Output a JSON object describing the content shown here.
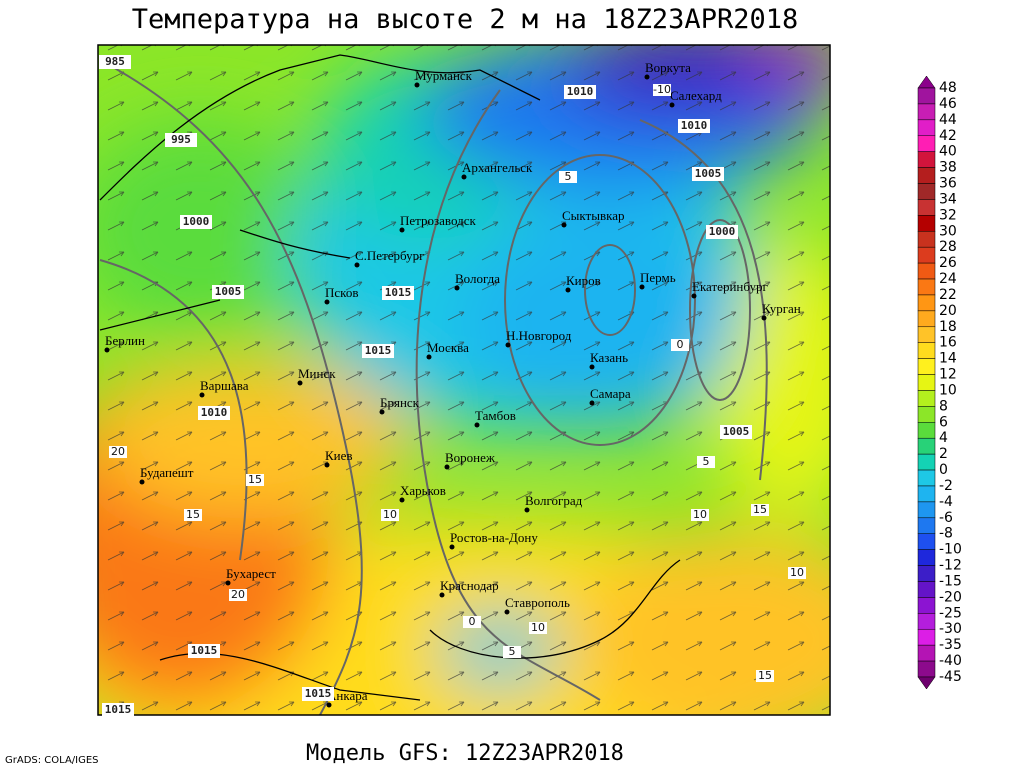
{
  "title": "Температура на высоте 2 м на 18Z23APR2018",
  "footer": "Модель GFS: 12Z23APR2018",
  "credit": "GrADS: COLA/IGES",
  "cities": [
    "Мурманск",
    "Воркута",
    "Салехард",
    "Архангельск",
    "Сыктывкар",
    "Петрозаводск",
    "С.Петербург",
    "Вологда",
    "Киров",
    "Пермь",
    "Екатеринбург",
    "Курган",
    "Псков",
    "Берлин",
    "Н.Новгород",
    "Москва",
    "Казань",
    "Минск",
    "Варшава",
    "Самара",
    "Брянск",
    "Тамбов",
    "Киев",
    "Воронеж",
    "Будапешт",
    "Харьков",
    "Волгоград",
    "Ростов-на-Дону",
    "Бухарест",
    "Краснодар",
    "Ставрополь",
    "Анкара"
  ],
  "isobar_labels": [
    "985",
    "995",
    "1000",
    "1005",
    "1015",
    "1015",
    "1010",
    "1010",
    "1010",
    "1005",
    "1000",
    "1005",
    "1015",
    "1015",
    "1015"
  ],
  "contour_labels": [
    "-10",
    "5",
    "0",
    "15",
    "10",
    "20",
    "15",
    "10",
    "15",
    "10",
    "5",
    "0",
    "5",
    "10",
    "15",
    "20"
  ],
  "colorbar": {
    "labels": [
      48,
      46,
      44,
      42,
      40,
      38,
      36,
      34,
      32,
      30,
      28,
      26,
      24,
      22,
      20,
      18,
      16,
      14,
      12,
      10,
      8,
      6,
      4,
      2,
      0,
      -2,
      -4,
      -6,
      -8,
      -10,
      -12,
      -15,
      -20,
      -25,
      -30,
      -35,
      -40,
      -45
    ],
    "colors": [
      "#8b008b",
      "#a0149e",
      "#c81eb4",
      "#e11ec8",
      "#ff1eb4",
      "#d2143c",
      "#b41e1e",
      "#a02828",
      "#c83232",
      "#b40000",
      "#c8321e",
      "#dc3c1e",
      "#f05a14",
      "#fa7814",
      "#ff9614",
      "#ffaa1e",
      "#ffc328",
      "#ffdc1e",
      "#fff01e",
      "#e6f514",
      "#b4f01e",
      "#8ce628",
      "#5adc3c",
      "#28d278",
      "#14d2b4",
      "#1ec8e6",
      "#1eb4f0",
      "#1e96f0",
      "#1e78f0",
      "#1e50f0",
      "#1e28dc",
      "#3c1ec8",
      "#6414c8",
      "#8c14d2",
      "#b41edc",
      "#dc1ee6",
      "#b414b4",
      "#8c0a8c",
      "#6e006e"
    ]
  }
}
